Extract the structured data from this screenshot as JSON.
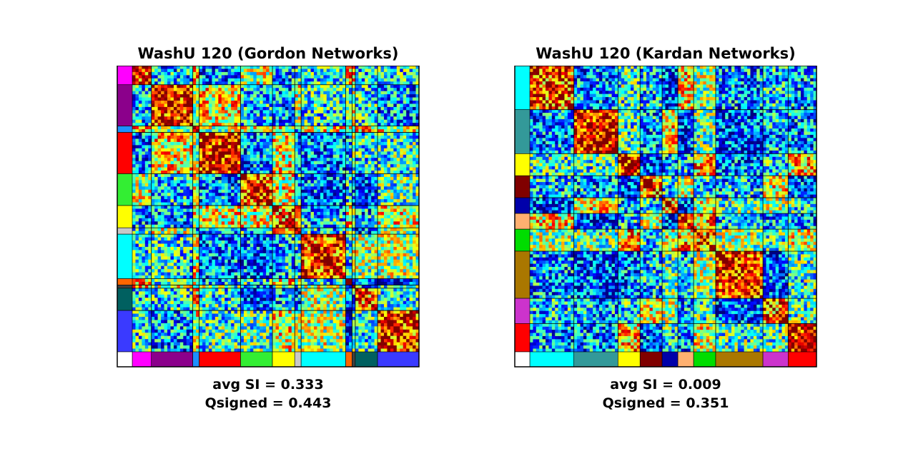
{
  "chart_data": [
    {
      "type": "heatmap",
      "title": "WashU 120 (Gordon Networks)",
      "colormap": "jet",
      "networks": [
        {
          "color": "#ff00ff",
          "size": 6
        },
        {
          "color": "#8b008b",
          "size": 12
        },
        {
          "color": "#1e90ff",
          "size": 2
        },
        {
          "color": "#ff0000",
          "size": 12
        },
        {
          "color": "#33ee33",
          "size": 9
        },
        {
          "color": "#ffff00",
          "size": 7
        },
        {
          "color": "#c8c8c8",
          "size": 2
        },
        {
          "color": "#00ffff",
          "size": 13
        },
        {
          "color": "#ff6600",
          "size": 2
        },
        {
          "color": "#404040",
          "size": 1
        },
        {
          "color": "#006060",
          "size": 7
        },
        {
          "color": "#3a3aff",
          "size": 12
        }
      ],
      "stats": {
        "si_label": "avg SI = 0.333",
        "q_label": "Qsigned = 0.443"
      }
    },
    {
      "type": "heatmap",
      "title": "WashU 120 (Kardan Networks)",
      "colormap": "jet",
      "networks": [
        {
          "color": "#00ffff",
          "size": 12
        },
        {
          "color": "#339999",
          "size": 12
        },
        {
          "color": "#ffff00",
          "size": 6
        },
        {
          "color": "#800000",
          "size": 6
        },
        {
          "color": "#0000aa",
          "size": 4
        },
        {
          "color": "#ffb070",
          "size": 4
        },
        {
          "color": "#00dd00",
          "size": 6
        },
        {
          "color": "#aa7700",
          "size": 13
        },
        {
          "color": "#cc33cc",
          "size": 7
        },
        {
          "color": "#ff0000",
          "size": 8
        }
      ],
      "stats": {
        "si_label": "avg SI = 0.009",
        "q_label": "Qsigned = 0.351"
      }
    }
  ]
}
